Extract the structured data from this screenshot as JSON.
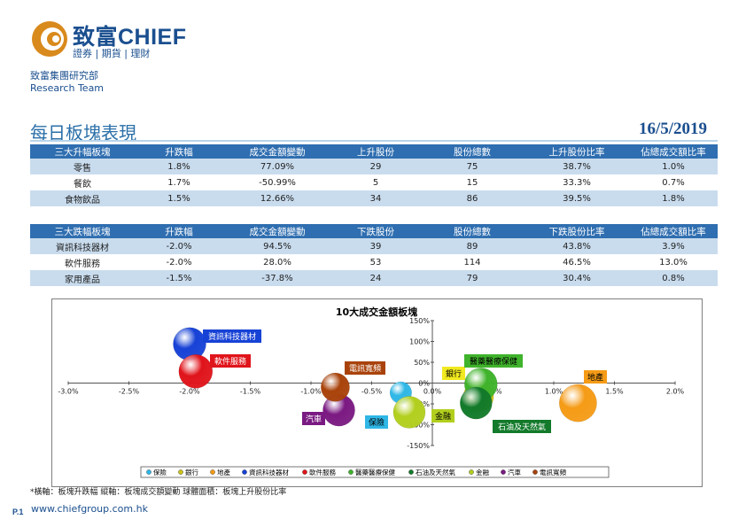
{
  "header": {
    "logo_name": "致富CHIEF",
    "logo_sub": "證券 | 期貨 | 理財",
    "dept_line1": "致富集團研究部",
    "dept_line2": "Research Team"
  },
  "title": "每日板塊表現",
  "date": "16/5/2019",
  "table_up": {
    "headers": [
      "三大升幅板塊",
      "升跌幅",
      "成交金額變動",
      "上升股份",
      "股份總數",
      "上升股份比率",
      "佔總成交額比率"
    ],
    "rows": [
      [
        "零售",
        "1.8%",
        "77.09%",
        "29",
        "75",
        "38.7%",
        "1.0%"
      ],
      [
        "餐飲",
        "1.7%",
        "-50.99%",
        "5",
        "15",
        "33.3%",
        "0.7%"
      ],
      [
        "食物飲品",
        "1.5%",
        "12.66%",
        "34",
        "86",
        "39.5%",
        "1.8%"
      ]
    ]
  },
  "table_down": {
    "headers": [
      "三大跌幅板塊",
      "升跌幅",
      "成交金額變動",
      "下跌股份",
      "股份總數",
      "下跌股份比率",
      "佔總成交額比率"
    ],
    "rows": [
      [
        "資訊科技器材",
        "-2.0%",
        "94.5%",
        "39",
        "89",
        "43.8%",
        "3.9%"
      ],
      [
        "軟件服務",
        "-2.0%",
        "28.0%",
        "53",
        "114",
        "46.5%",
        "13.0%"
      ],
      [
        "家用產品",
        "-1.5%",
        "-37.8%",
        "24",
        "79",
        "30.4%",
        "0.8%"
      ]
    ]
  },
  "chart_data": {
    "type": "scatter",
    "title": "10大成交金額板塊",
    "xlim": [
      -3.0,
      2.0
    ],
    "ylim": [
      -150,
      150
    ],
    "x_ticks": [
      "-3.0%",
      "-2.5%",
      "-2.0%",
      "-1.5%",
      "-1.0%",
      "-0.5%",
      "0.0%",
      "0.5%",
      "1.0%",
      "1.5%",
      "2.0%"
    ],
    "y_ticks": [
      "150%",
      "100%",
      "50%",
      "0%",
      "-50%",
      "-100%",
      "-150%"
    ],
    "series": [
      {
        "name": "保險",
        "x": -0.26,
        "y": -23,
        "size": 0.18,
        "color": "#2fb7e6"
      },
      {
        "name": "銀行",
        "x": 0.38,
        "y": -32,
        "size": 0.38,
        "color": "#c9c21a"
      },
      {
        "name": "地產",
        "x": 1.2,
        "y": -48,
        "size": 0.55,
        "color": "#f59b16"
      },
      {
        "name": "資訊科技器材",
        "x": -2.0,
        "y": 94,
        "size": 0.44,
        "color": "#1742d6"
      },
      {
        "name": "軟件服務",
        "x": -1.95,
        "y": 28,
        "size": 0.46,
        "color": "#e0141b"
      },
      {
        "name": "醫藥醫療保健",
        "x": 0.4,
        "y": -3,
        "size": 0.44,
        "color": "#3fb32b"
      },
      {
        "name": "石油及天然氣",
        "x": 0.36,
        "y": -48,
        "size": 0.42,
        "color": "#127a2a"
      },
      {
        "name": "金融",
        "x": -0.19,
        "y": -70,
        "size": 0.42,
        "color": "#b2cf1e"
      },
      {
        "name": "汽車",
        "x": -0.77,
        "y": -65,
        "size": 0.42,
        "color": "#7b1a82"
      },
      {
        "name": "電訊寬頻",
        "x": -0.8,
        "y": -10,
        "size": 0.34,
        "color": "#a9430b"
      }
    ],
    "labels": [
      {
        "text": "資訊科技器材",
        "color": "#1742d6"
      },
      {
        "text": "軟件服務",
        "color": "#e0141b"
      },
      {
        "text": "電訊寬頻",
        "color": "#a9430b"
      },
      {
        "text": "銀行",
        "color": "#f0e91f"
      },
      {
        "text": "醫藥醫療保健",
        "color": "#3fb32b"
      },
      {
        "text": "地產",
        "color": "#f59b16"
      },
      {
        "text": "汽車",
        "color": "#7b1a82"
      },
      {
        "text": "保險",
        "color": "#2fb7e6"
      },
      {
        "text": "金融",
        "color": "#b2cf1e"
      },
      {
        "text": "石油及天然氣",
        "color": "#127a2a"
      }
    ],
    "legend": [
      "保險",
      "銀行",
      "地產",
      "資訊科技器材",
      "軟件服務",
      "醫藥醫療保健",
      "石油及天然氣",
      "金融",
      "汽車",
      "電訊寬頻"
    ],
    "legend_position": "bottom"
  },
  "footnote": "*橫軸：板塊升跌幅      縱軸：板塊成交額變動      球體面積：板塊上升股份比率",
  "url": "www.chiefgroup.com.hk",
  "page": "P.1"
}
